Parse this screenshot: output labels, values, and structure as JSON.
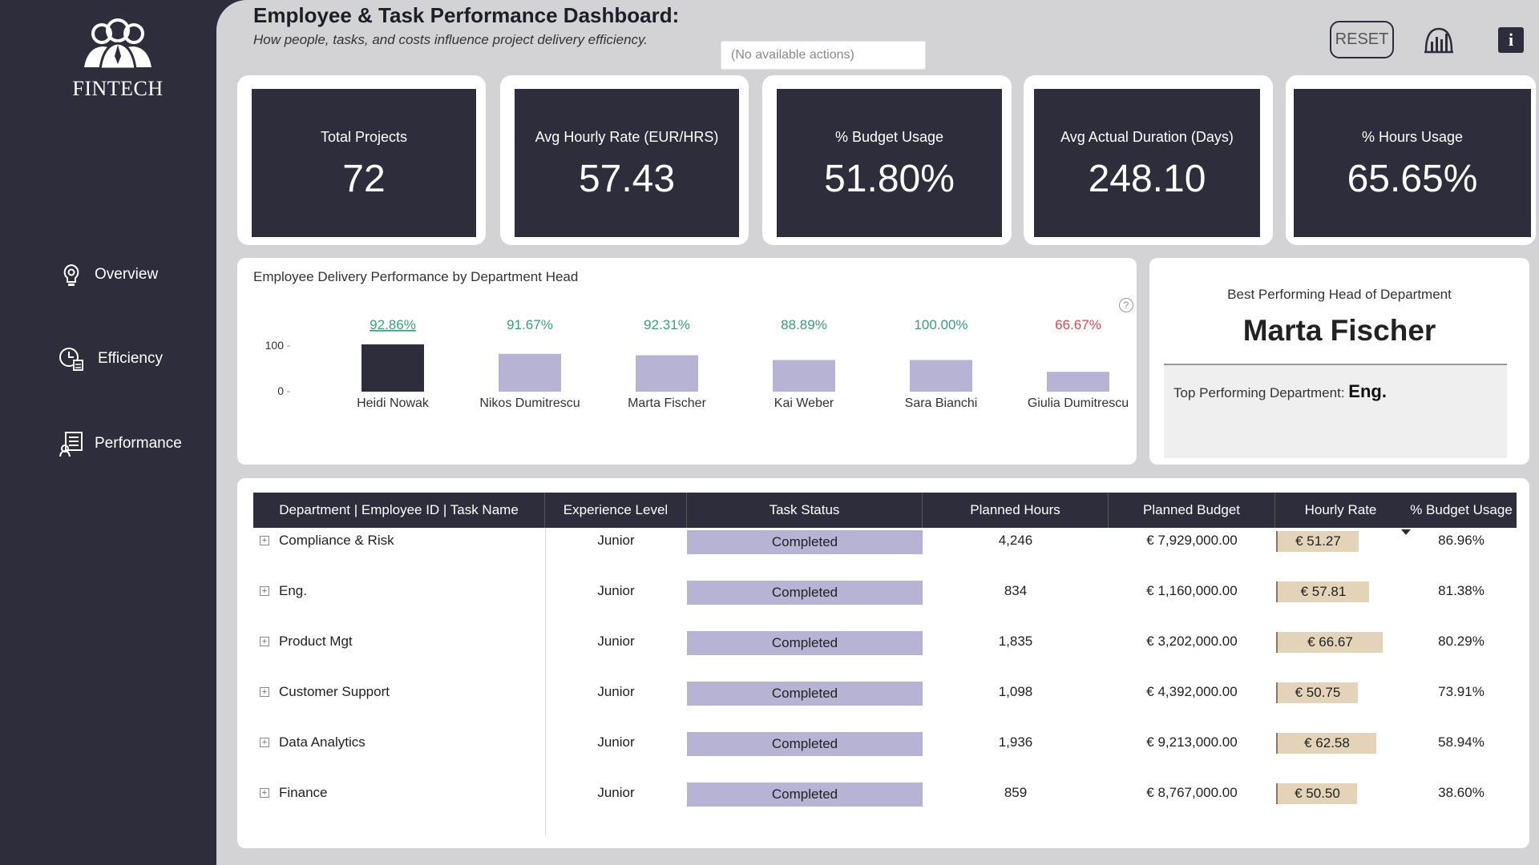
{
  "app": {
    "logo_text": "FINTECH",
    "title": "Employee & Task Performance Dashboard:",
    "subtitle": "How people, tasks, and costs influence project delivery efficiency.",
    "tooltip": "(No available actions)",
    "reset_label": "RESET",
    "info_label": "i"
  },
  "sidebar": {
    "items": [
      {
        "label": "Overview",
        "icon": "gear-bulb-icon"
      },
      {
        "label": "Efficiency",
        "icon": "clock-efficiency-icon"
      },
      {
        "label": "Performance",
        "icon": "performance-report-icon"
      }
    ]
  },
  "kpis": [
    {
      "label": "Total Projects",
      "value": "72"
    },
    {
      "label": "Avg Hourly Rate (EUR/HRS)",
      "value": "57.43"
    },
    {
      "label": "% Budget Usage",
      "value": "51.80%"
    },
    {
      "label": "Avg Actual Duration (Days)",
      "value": "248.10"
    },
    {
      "label": "% Hours Usage",
      "value": "65.65%"
    }
  ],
  "chart_panel": {
    "title": "Employee Delivery Performance by Department Head",
    "help": "?"
  },
  "chart_data": {
    "type": "bar",
    "title": "Employee Delivery Performance by Department Head",
    "categories": [
      "Heidi Nowak",
      "Nikos Dumitrescu",
      "Marta Fischer",
      "Kai Weber",
      "Sara Bianchi",
      "Giulia Dumitrescu"
    ],
    "values": [
      92.86,
      91.67,
      92.31,
      88.89,
      100.0,
      66.67
    ],
    "data_labels": [
      "92.86%",
      "91.67%",
      "92.31%",
      "88.89%",
      "100.00%",
      "66.67%"
    ],
    "bar_heights_units": [
      100,
      80,
      77,
      67,
      67,
      42
    ],
    "yticks": [
      "100",
      "0"
    ],
    "ylim": [
      0,
      100
    ],
    "colors": {
      "highlight": "#2e2d3b",
      "default": "#b6b3d4",
      "good_label": "#3aa07a",
      "bad_label": "#e0474c"
    },
    "label_colors": [
      "good",
      "good",
      "good",
      "good",
      "good",
      "bad"
    ]
  },
  "best": {
    "label": "Best Performing Head of Department",
    "name": "Marta Fischer",
    "dept_label": "Top Performing Department:",
    "dept_value": "Eng."
  },
  "table": {
    "headers": [
      "Department | Employee ID | Task Name",
      "Experience Level",
      "Task Status",
      "Planned Hours",
      "Planned Budget",
      "Hourly Rate",
      "% Budget Usage"
    ],
    "rows": [
      {
        "dept": "Compliance & Risk",
        "level": "Junior",
        "status": "Completed",
        "hours": "4,246",
        "budget": "€ 7,929,000.00",
        "rate": "€ 51.27",
        "rate_value": 51.27,
        "usage": "86.96%"
      },
      {
        "dept": "Eng.",
        "level": "Junior",
        "status": "Completed",
        "hours": "834",
        "budget": "€ 1,160,000.00",
        "rate": "€ 57.81",
        "rate_value": 57.81,
        "usage": "81.38%"
      },
      {
        "dept": "Product Mgt",
        "level": "Junior",
        "status": "Completed",
        "hours": "1,835",
        "budget": "€ 3,202,000.00",
        "rate": "€ 66.67",
        "rate_value": 66.67,
        "usage": "80.29%"
      },
      {
        "dept": "Customer Support",
        "level": "Junior",
        "status": "Completed",
        "hours": "1,098",
        "budget": "€ 4,392,000.00",
        "rate": "€ 50.75",
        "rate_value": 50.75,
        "usage": "73.91%"
      },
      {
        "dept": "Data Analytics",
        "level": "Junior",
        "status": "Completed",
        "hours": "1,936",
        "budget": "€ 9,213,000.00",
        "rate": "€ 62.58",
        "rate_value": 62.58,
        "usage": "58.94%"
      },
      {
        "dept": "Finance",
        "level": "Junior",
        "status": "Completed",
        "hours": "859",
        "budget": "€ 8,767,000.00",
        "rate": "€ 50.50",
        "rate_value": 50.5,
        "usage": "38.60%"
      }
    ]
  }
}
